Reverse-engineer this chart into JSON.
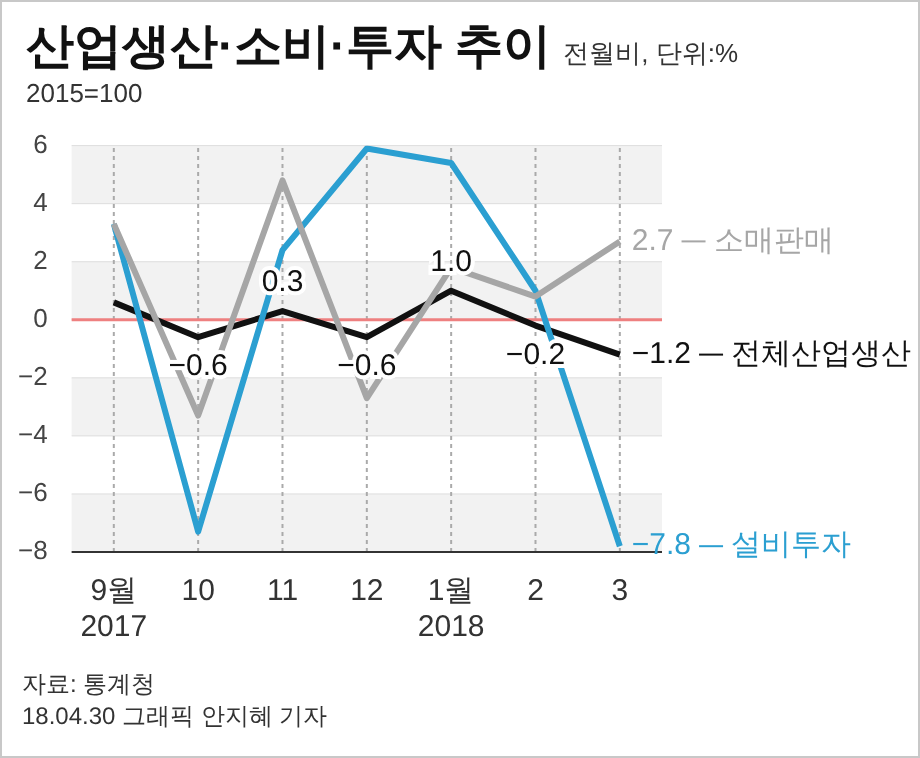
{
  "chart_data": {
    "type": "line",
    "title": "산업생산·소비·투자 추이",
    "subtitle": "전월비, 단위:%",
    "annotations": [
      "2015=100",
      "자료: 통계청",
      "18.04.30 그래픽 안지혜 기자"
    ],
    "categories": [
      "9월\n2017",
      "10",
      "11",
      "12",
      "1월\n2018",
      "2",
      "3"
    ],
    "series": [
      {
        "name": "소매판매",
        "color": "#a6a6a6",
        "values": [
          3.3,
          -3.3,
          4.8,
          -2.7,
          1.8,
          0.8,
          2.7
        ],
        "value_labels": [
          null,
          null,
          null,
          null,
          null,
          null,
          "2.7"
        ]
      },
      {
        "name": "설비투자",
        "color": "#2b9fd1",
        "values": [
          3.3,
          -7.3,
          2.4,
          5.9,
          5.4,
          1.0,
          -7.8
        ],
        "value_labels": [
          null,
          null,
          null,
          null,
          null,
          null,
          "−7.8"
        ]
      },
      {
        "name": "전체산업생산",
        "color": "#111111",
        "values": [
          0.6,
          -0.6,
          0.3,
          -0.6,
          1.0,
          -0.2,
          -1.2
        ],
        "value_labels": [
          null,
          "−0.6",
          "0.3",
          "−0.6",
          "1.0",
          "−0.2",
          "−1.2"
        ]
      }
    ],
    "ylim": [
      -8,
      6
    ],
    "yticks": [
      {
        "value": -8,
        "label": "−8"
      },
      {
        "value": -6,
        "label": "−6"
      },
      {
        "value": -4,
        "label": "−4"
      },
      {
        "value": -2,
        "label": "−2"
      },
      0,
      2,
      4,
      6
    ],
    "ref_lines": [
      {
        "axis": "y",
        "value": 0,
        "color": "#ee8080"
      }
    ],
    "bands": [
      {
        "axis": "y",
        "from": 4,
        "to": 6,
        "color": "#f2f2f2"
      },
      {
        "axis": "y",
        "from": 0,
        "to": 2,
        "color": "#f2f2f2"
      },
      {
        "axis": "y",
        "from": -4,
        "to": -2,
        "color": "#f2f2f2"
      },
      {
        "axis": "y",
        "from": -8,
        "to": -6,
        "color": "#f2f2f2"
      }
    ],
    "legend": "right",
    "grid": true,
    "marker": "none",
    "line_style": "solid"
  }
}
